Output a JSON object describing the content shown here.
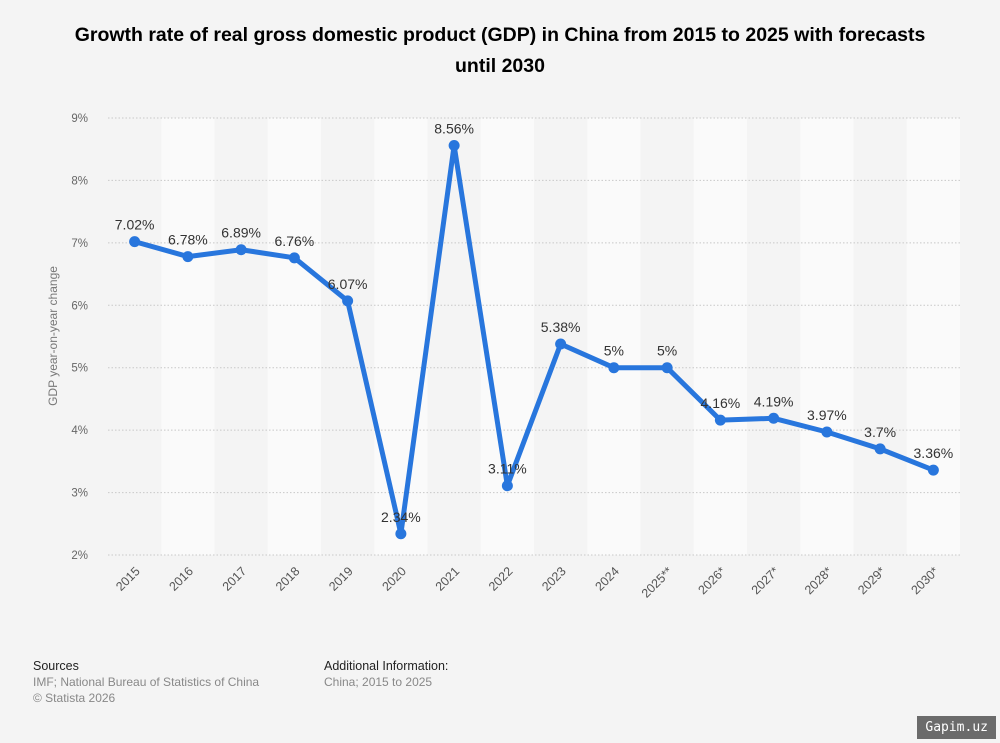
{
  "chart_data": {
    "type": "line",
    "title": "Growth rate of real gross domestic product (GDP) in China from 2015 to 2025 with forecasts until 2030",
    "ylabel": "GDP year-on-year change",
    "xlabel": "",
    "categories": [
      "2015",
      "2016",
      "2017",
      "2018",
      "2019",
      "2020",
      "2021",
      "2022",
      "2023",
      "2024",
      "2025**",
      "2026*",
      "2027*",
      "2028*",
      "2029*",
      "2030*"
    ],
    "values": [
      7.02,
      6.78,
      6.89,
      6.76,
      6.07,
      2.34,
      8.56,
      3.11,
      5.38,
      5,
      5,
      4.16,
      4.19,
      3.97,
      3.7,
      3.36
    ],
    "data_labels": [
      "7.02%",
      "6.78%",
      "6.89%",
      "6.76%",
      "6.07%",
      "2.34%",
      "8.56%",
      "3.11%",
      "5.38%",
      "5%",
      "5%",
      "4.16%",
      "4.19%",
      "3.97%",
      "3.7%",
      "3.36%"
    ],
    "ylim": [
      2,
      9
    ],
    "yticks": [
      "2%",
      "3%",
      "4%",
      "5%",
      "6%",
      "7%",
      "8%",
      "9%"
    ],
    "grid": true,
    "line_color": "#2876dd"
  },
  "sources": {
    "heading": "Sources",
    "lines": [
      "IMF; National Bureau of Statistics of China",
      "© Statista 2026"
    ]
  },
  "additional": {
    "heading": "Additional Information:",
    "text": "China; 2015 to 2025"
  },
  "watermark": "Gapim.uz"
}
